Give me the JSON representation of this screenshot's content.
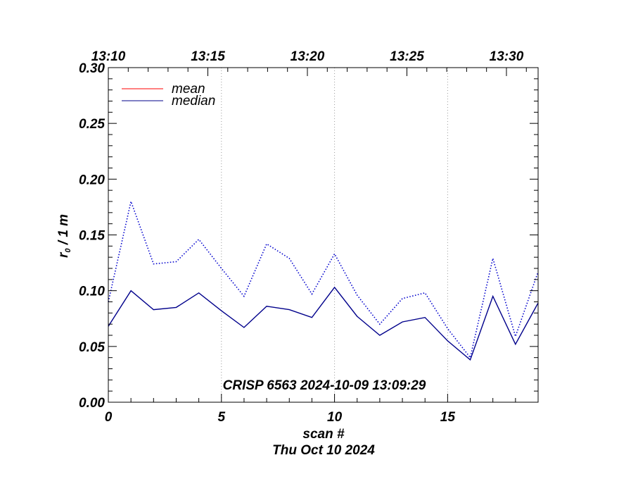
{
  "chart_data": {
    "type": "line",
    "annotation": "CRISP 6563 2024-10-09 13:09:29",
    "xlabel": "scan #",
    "date_label": "Thu Oct 10 2024",
    "ylabel_main": "r",
    "ylabel_sub": "0",
    "ylabel_rest": " / 1 m",
    "xlim": [
      0,
      19
    ],
    "ylim": [
      0,
      0.3
    ],
    "x_ticks": [
      0,
      5,
      10,
      15
    ],
    "x_tick_labels": [
      "0",
      "5",
      "10",
      "15"
    ],
    "y_ticks": [
      0.0,
      0.05,
      0.1,
      0.15,
      0.2,
      0.25,
      0.3
    ],
    "y_tick_labels": [
      "0.00",
      "0.05",
      "0.10",
      "0.15",
      "0.20",
      "0.25",
      "0.30"
    ],
    "top_ticks": [
      0,
      4.4,
      8.8,
      13.2,
      17.6
    ],
    "top_tick_labels": [
      "13:10",
      "13:15",
      "13:20",
      "13:25",
      "13:30"
    ],
    "vertical_gridlines": [
      5,
      10,
      15
    ],
    "legend": {
      "placement": "top-left",
      "entries": [
        {
          "name": "mean",
          "color": "#ff0000"
        },
        {
          "name": "median",
          "color": "#00008b"
        }
      ]
    },
    "x": [
      0,
      1,
      2,
      3,
      4,
      5,
      6,
      7,
      8,
      9,
      10,
      11,
      12,
      13,
      14,
      15,
      16,
      17,
      18,
      19
    ],
    "series": [
      {
        "name": "median",
        "style": "solid",
        "color": "#00008b",
        "values": [
          0.068,
          0.1,
          0.083,
          0.085,
          0.098,
          0.082,
          0.067,
          0.086,
          0.083,
          0.076,
          0.103,
          0.077,
          0.06,
          0.072,
          0.076,
          0.055,
          0.038,
          0.095,
          0.052,
          0.089
        ]
      },
      {
        "name": "",
        "style": "dotted",
        "color": "#0000cd",
        "values": [
          0.09,
          0.18,
          0.124,
          0.126,
          0.146,
          0.12,
          0.095,
          0.142,
          0.129,
          0.097,
          0.133,
          0.096,
          0.07,
          0.093,
          0.098,
          0.066,
          0.04,
          0.129,
          0.059,
          0.117
        ]
      }
    ]
  }
}
